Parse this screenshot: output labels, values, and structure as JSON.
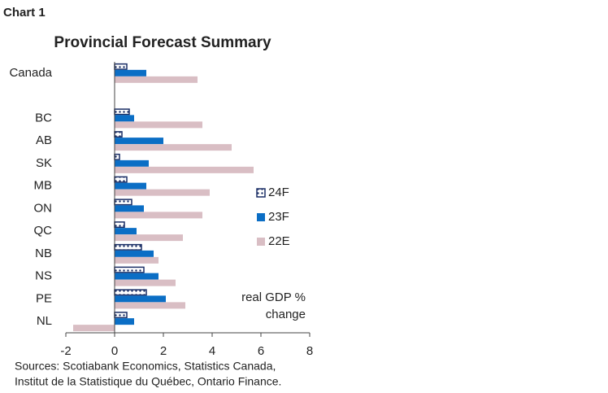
{
  "chart_data": {
    "type": "bar",
    "orientation": "horizontal",
    "label": "Chart 1",
    "title": "Provincial Forecast Summary",
    "annotation": [
      "real GDP %",
      "change"
    ],
    "source": [
      "Sources: Scotiabank Economics, Statistics Canada,",
      "Institut de la Statistique du Québec, Ontario Finance."
    ],
    "categories": [
      "Canada",
      null,
      "BC",
      "AB",
      "SK",
      "MB",
      "ON",
      "QC",
      "NB",
      "NS",
      "PE",
      "NL"
    ],
    "series": [
      {
        "name": "24F",
        "color": "#1b2f66",
        "pattern": "dots",
        "values": [
          0.5,
          null,
          0.6,
          0.3,
          0.2,
          0.5,
          0.7,
          0.4,
          1.1,
          1.2,
          1.3,
          0.5
        ]
      },
      {
        "name": "23F",
        "color": "#0b6ec5",
        "values": [
          1.3,
          null,
          0.8,
          2.0,
          1.4,
          1.3,
          1.2,
          0.9,
          1.6,
          1.8,
          2.1,
          0.8
        ]
      },
      {
        "name": "22E",
        "color": "#d9bec4",
        "values": [
          3.4,
          null,
          3.6,
          4.8,
          5.7,
          3.9,
          3.6,
          2.8,
          1.8,
          2.5,
          2.9,
          -1.7
        ]
      }
    ],
    "xlim": [
      -2,
      8
    ],
    "xticks": [
      -2,
      0,
      2,
      4,
      6,
      8
    ],
    "grid": false,
    "legend": "right"
  }
}
